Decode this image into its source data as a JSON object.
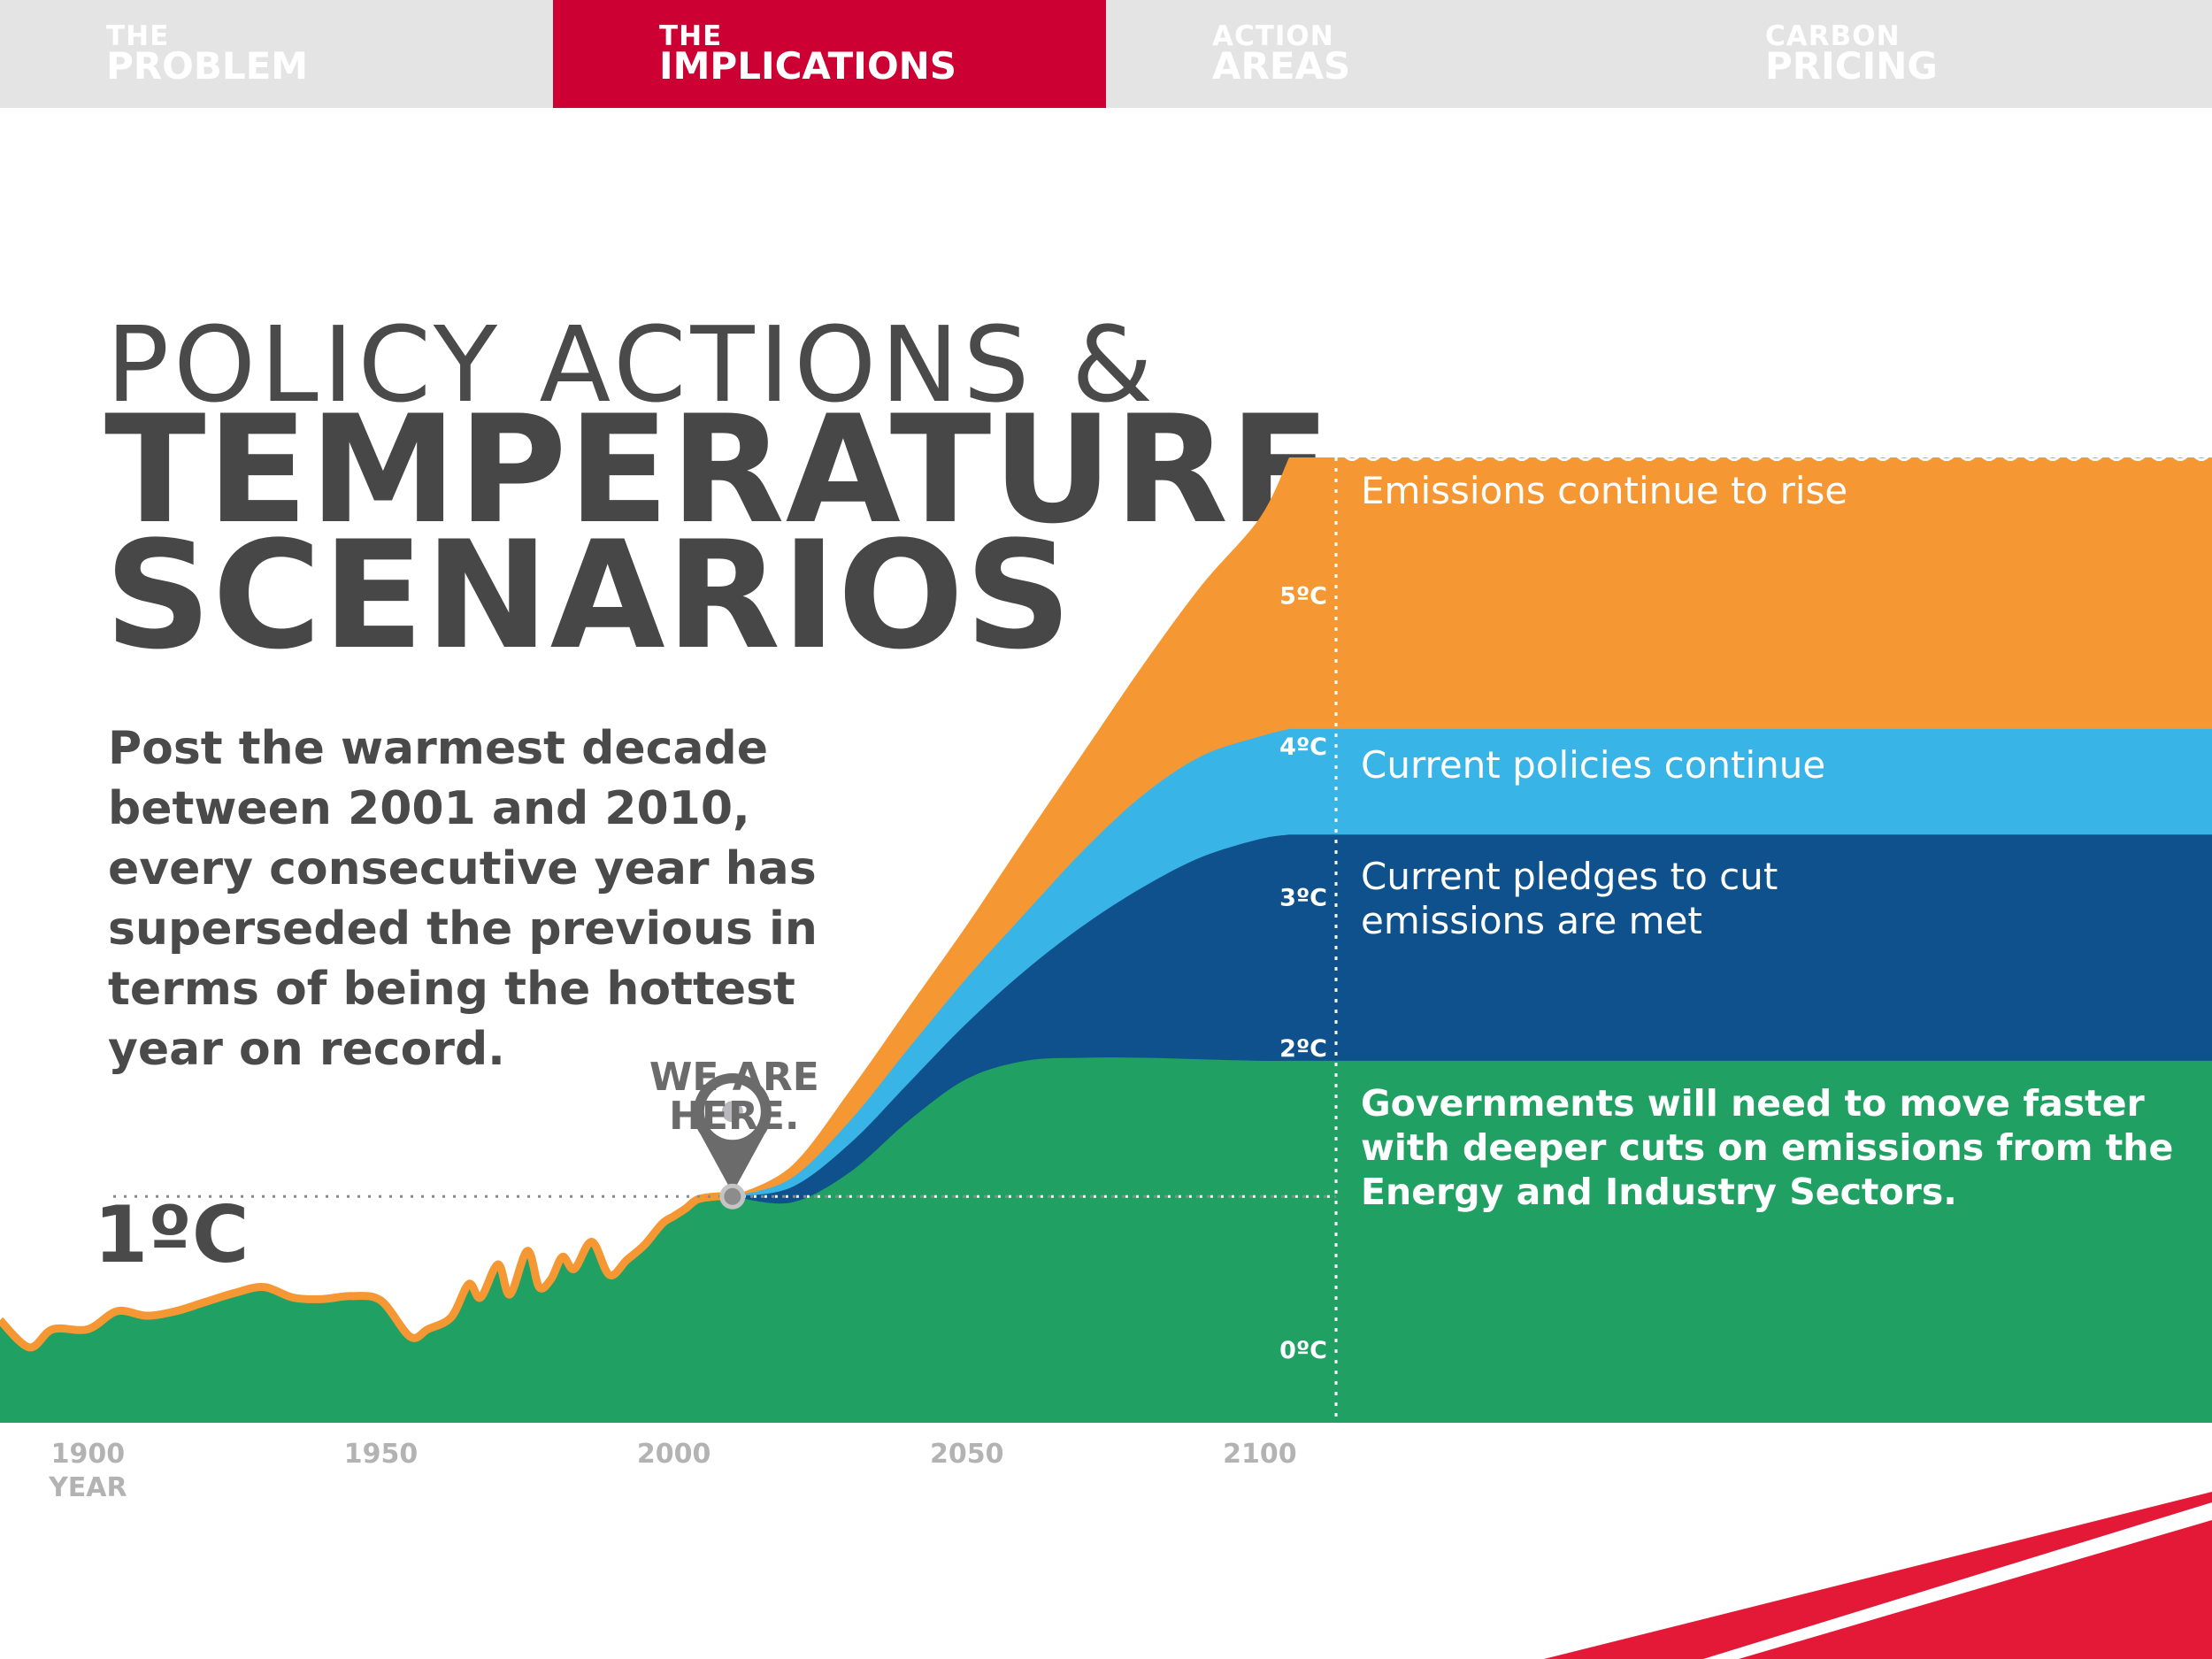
{
  "nav": {
    "tabs": [
      {
        "line1": "THE",
        "line2": "PROBLEM",
        "active": false
      },
      {
        "line1": "THE",
        "line2": "IMPLICATIONS",
        "active": true
      },
      {
        "line1": "ACTION",
        "line2": "AREAS",
        "active": false
      },
      {
        "line1": "CARBON",
        "line2": "PRICING",
        "active": false
      }
    ]
  },
  "header": {
    "title_line1": "POLICY ACTIONS &",
    "title_line2": "TEMPERATURE",
    "title_line3": "SCENARIOS",
    "paragraph": "Post the warmest decade between 2001 and 2010, every consecutive year has superseded the previous in terms of being the hottest year on record."
  },
  "colors": {
    "accent_red": "#cc0033",
    "nav_gray": "#e4e4e4",
    "text_gray": "#4a4a4a",
    "green": "#21a063",
    "dark_blue": "#0e518c",
    "light_blue": "#39b4e6",
    "orange": "#f59834",
    "corner_red": "#e31937"
  },
  "chart_data": {
    "type": "area",
    "xlabel": "YEAR",
    "ylabel": "",
    "xlim": [
      1885,
      2113
    ],
    "ylim": [
      -0.5,
      6
    ],
    "x_ticks": [
      1900,
      1950,
      2000,
      2050,
      2100
    ],
    "y_tick_values": [
      0,
      2,
      3,
      4,
      5
    ],
    "y_tick_labels": [
      "0ºC",
      "2ºC",
      "3ºC",
      "4ºC",
      "5ºC"
    ],
    "current_marker": {
      "year": 2010,
      "value": 1.0,
      "label": "WE ARE HERE.",
      "value_label": "1ºC"
    },
    "history": {
      "x": [
        1885,
        1890,
        1894,
        1900,
        1905,
        1910,
        1915,
        1920,
        1925,
        1930,
        1935,
        1940,
        1945,
        1950,
        1955,
        1958,
        1962,
        1965,
        1967,
        1970,
        1972,
        1975,
        1977,
        1979,
        1981,
        1983,
        1986,
        1989,
        1992,
        1995,
        1998,
        2000,
        2002,
        2004,
        2007,
        2010
      ],
      "values": [
        0.18,
        0.0,
        0.12,
        0.12,
        0.24,
        0.21,
        0.24,
        0.3,
        0.36,
        0.4,
        0.33,
        0.32,
        0.34,
        0.31,
        0.07,
        0.12,
        0.2,
        0.42,
        0.33,
        0.55,
        0.35,
        0.64,
        0.4,
        0.45,
        0.6,
        0.52,
        0.7,
        0.48,
        0.58,
        0.68,
        0.82,
        0.87,
        0.92,
        0.98,
        1.0,
        1.0
      ]
    },
    "projection_x": [
      2010,
      2020,
      2030,
      2040,
      2050,
      2060,
      2070,
      2080,
      2090,
      2100,
      2105
    ],
    "series": [
      {
        "name": "Governments will need to move faster with deeper cuts on emissions from the Energy and Industry Sectors.",
        "values": [
          1.0,
          0.96,
          1.16,
          1.5,
          1.78,
          1.9,
          1.92,
          1.92,
          1.91,
          1.9,
          1.9
        ]
      },
      {
        "name": "Current pledges to cut emissions are met",
        "values": [
          1.0,
          1.06,
          1.35,
          1.75,
          2.15,
          2.5,
          2.8,
          3.05,
          3.25,
          3.37,
          3.4
        ]
      },
      {
        "name": "Current policies continue",
        "values": [
          1.0,
          1.12,
          1.5,
          1.98,
          2.45,
          2.88,
          3.3,
          3.66,
          3.92,
          4.05,
          4.1
        ]
      },
      {
        "name": "Emissions continue to rise",
        "values": [
          1.0,
          1.2,
          1.7,
          2.25,
          2.8,
          3.38,
          3.95,
          4.52,
          5.05,
          5.5,
          5.9
        ]
      }
    ]
  }
}
